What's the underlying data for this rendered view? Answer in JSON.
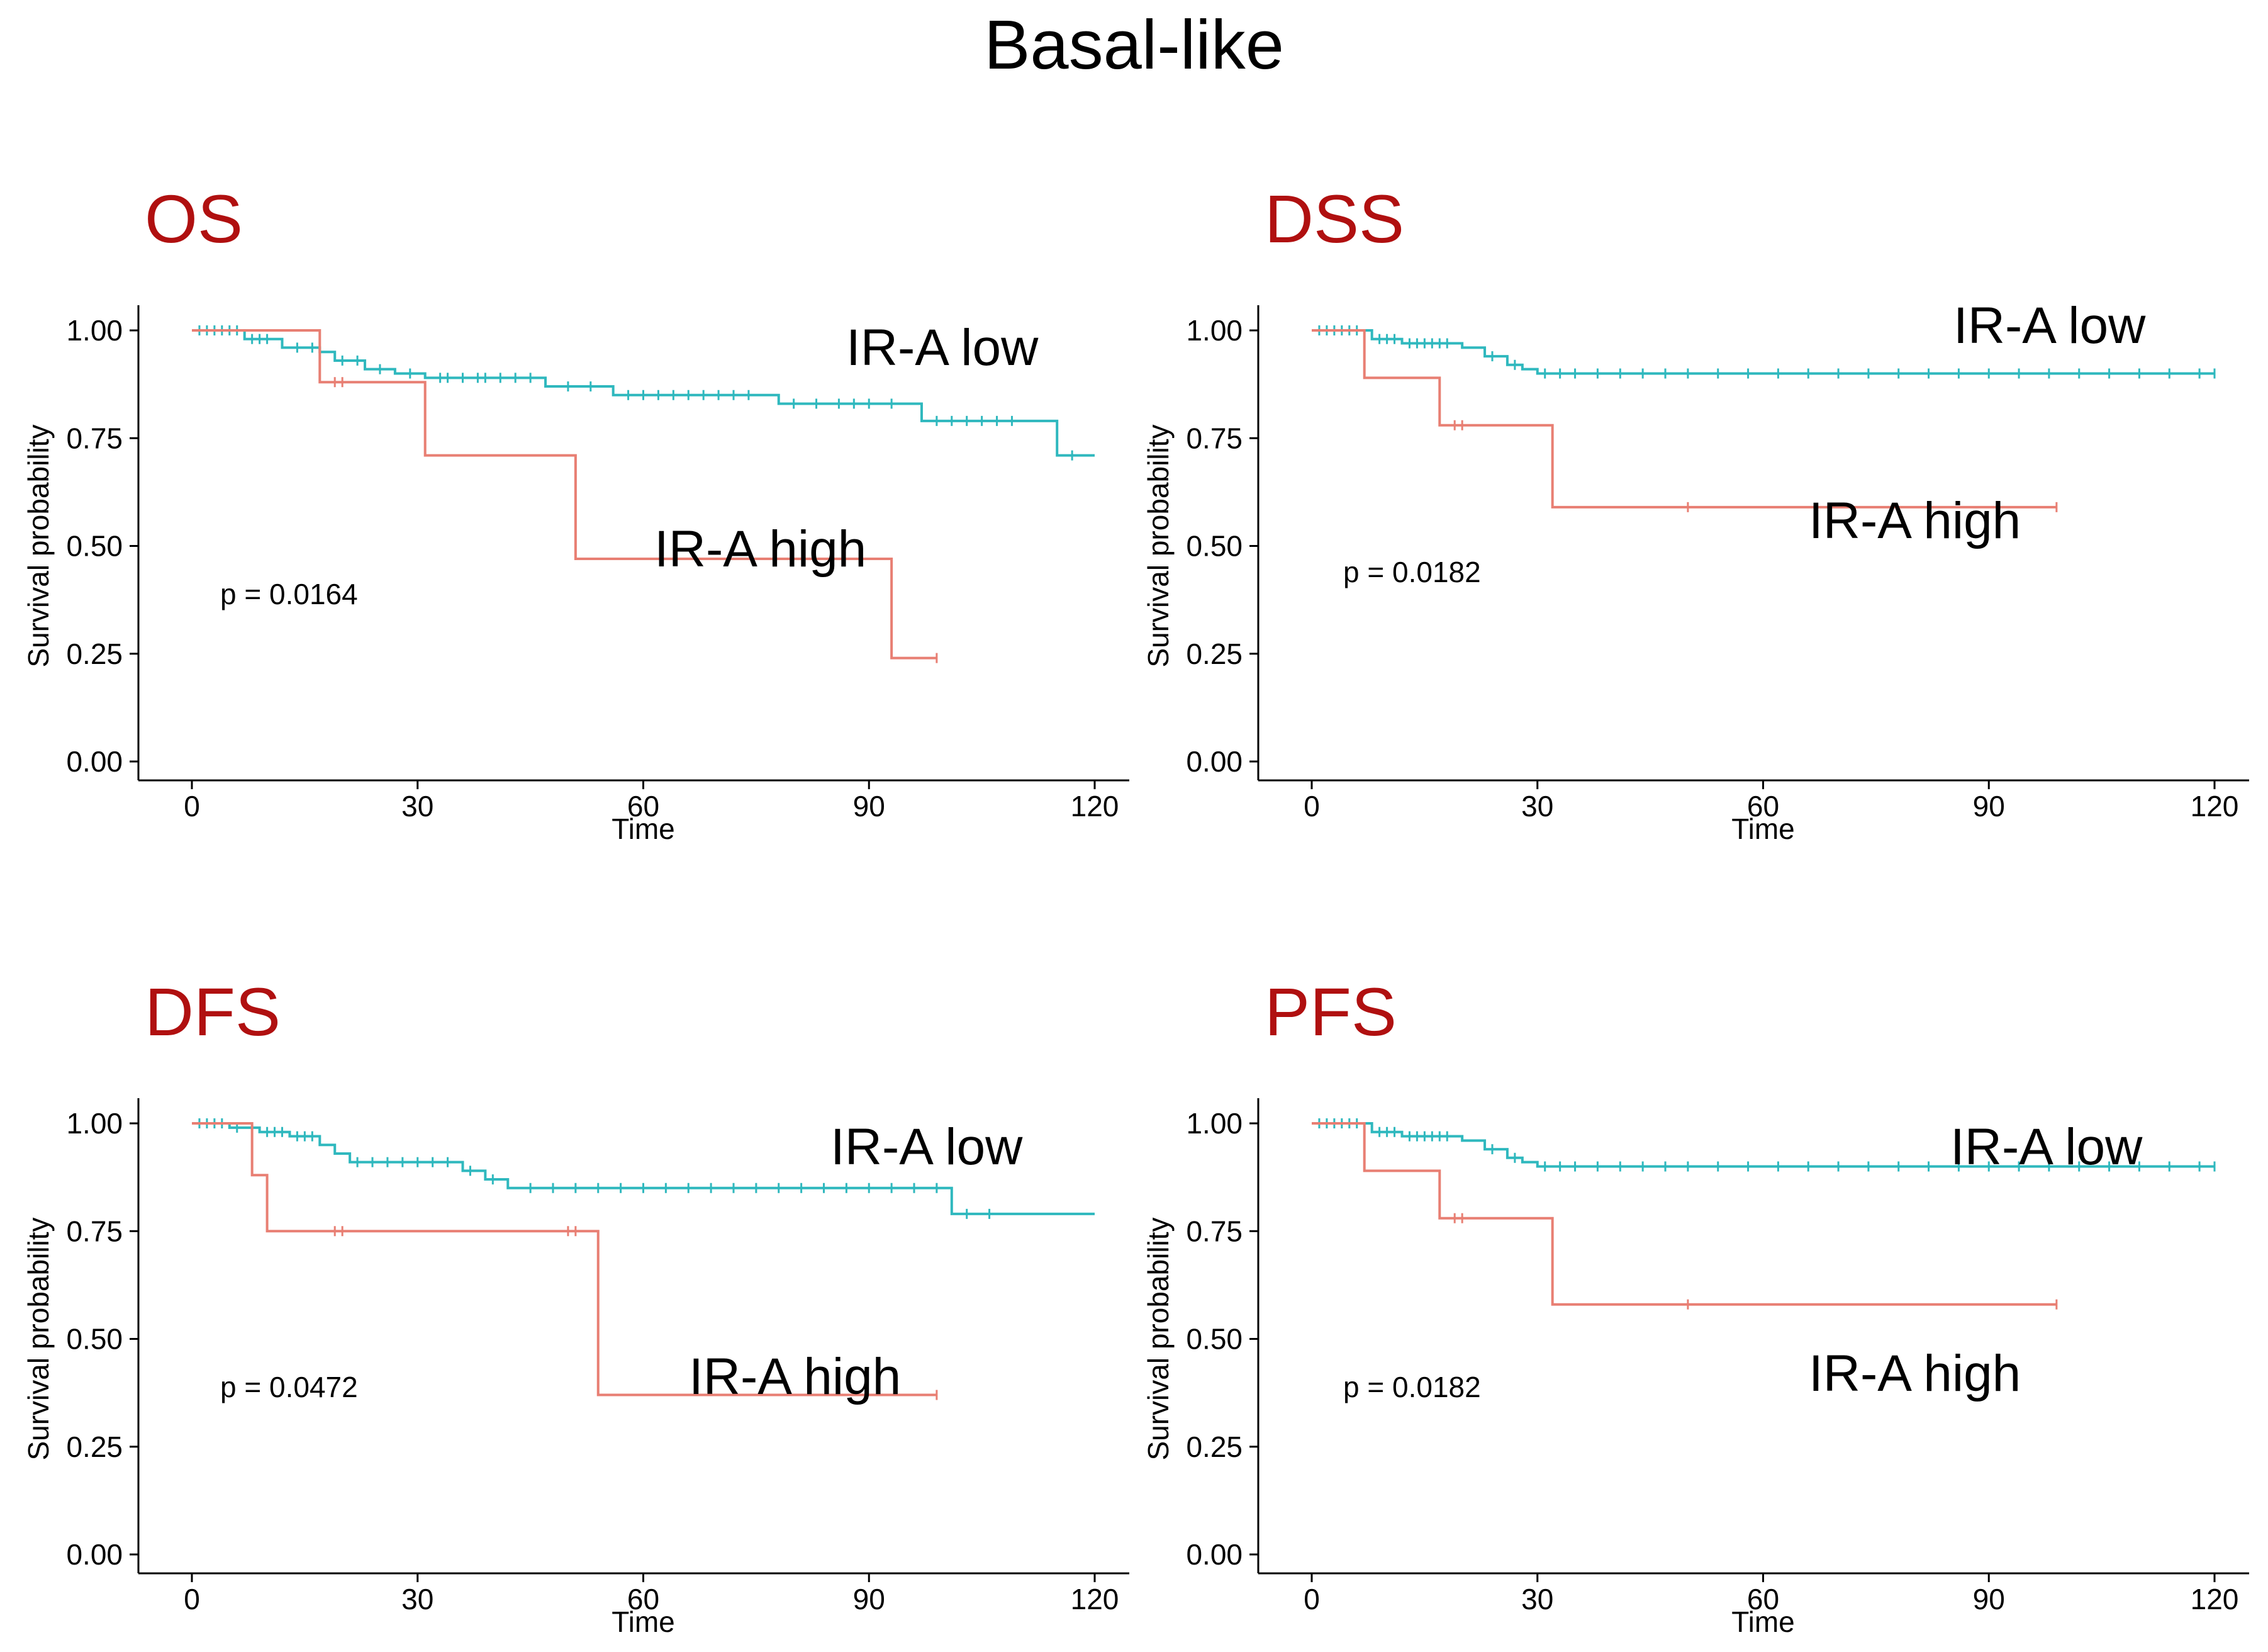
{
  "title": "Basal-like",
  "colors": {
    "low": "#2fb8be",
    "high": "#e87f73",
    "title": "#b01010",
    "axis": "#000000"
  },
  "chart_data": [
    {
      "type": "line",
      "id": "os",
      "title": "OS",
      "xlabel": "Time",
      "ylabel": "Survival probability",
      "xlim": [
        0,
        120
      ],
      "ylim": [
        0,
        1
      ],
      "xticks": [
        "0",
        "30",
        "60",
        "90",
        "120"
      ],
      "yticks": [
        "0.00",
        "0.25",
        "0.50",
        "0.75",
        "1.00"
      ],
      "pvalue": "p = 0.0164",
      "series": [
        {
          "name": "IR-A low",
          "label": "IR-A low",
          "x": [
            0,
            7,
            12,
            17,
            19,
            23,
            27,
            31,
            47,
            56,
            78,
            97,
            115,
            120
          ],
          "y": [
            1.0,
            0.98,
            0.96,
            0.95,
            0.93,
            0.91,
            0.9,
            0.89,
            0.87,
            0.85,
            0.83,
            0.79,
            0.71,
            0.71
          ],
          "censor_x": [
            1,
            2,
            3,
            4,
            5,
            6,
            8,
            9,
            10,
            14,
            16,
            20,
            22,
            25,
            29,
            33,
            34,
            36,
            38,
            39,
            41,
            43,
            45,
            50,
            53,
            58,
            60,
            62,
            64,
            66,
            68,
            70,
            72,
            74,
            80,
            83,
            86,
            88,
            90,
            93,
            99,
            101,
            103,
            105,
            107,
            109,
            117
          ]
        },
        {
          "name": "IR-A high",
          "label": "IR-A high",
          "x": [
            0,
            17,
            31,
            51,
            93,
            99
          ],
          "y": [
            1.0,
            0.88,
            0.71,
            0.47,
            0.24,
            0.24
          ],
          "censor_x": [
            19,
            20,
            99
          ]
        }
      ]
    },
    {
      "type": "line",
      "id": "dss",
      "title": "DSS",
      "xlabel": "Time",
      "ylabel": "Survival probability",
      "xlim": [
        0,
        120
      ],
      "ylim": [
        0,
        1
      ],
      "xticks": [
        "0",
        "30",
        "60",
        "90",
        "120"
      ],
      "yticks": [
        "0.00",
        "0.25",
        "0.50",
        "0.75",
        "1.00"
      ],
      "pvalue": "p = 0.0182",
      "series": [
        {
          "name": "IR-A low",
          "label": "IR-A low",
          "x": [
            0,
            8,
            12,
            20,
            23,
            26,
            28,
            30,
            120
          ],
          "y": [
            1.0,
            0.98,
            0.97,
            0.96,
            0.94,
            0.92,
            0.91,
            0.9,
            0.9
          ],
          "censor_x": [
            1,
            2,
            3,
            4,
            5,
            6,
            9,
            10,
            11,
            13,
            14,
            15,
            16,
            17,
            18,
            24,
            27,
            31,
            33,
            35,
            38,
            41,
            44,
            47,
            50,
            54,
            58,
            62,
            66,
            70,
            74,
            78,
            82,
            86,
            90,
            94,
            98,
            102,
            106,
            110,
            114,
            118,
            120
          ]
        },
        {
          "name": "IR-A high",
          "label": "IR-A high",
          "x": [
            0,
            7,
            17,
            32,
            99
          ],
          "y": [
            1.0,
            0.89,
            0.78,
            0.59,
            0.59
          ],
          "censor_x": [
            19,
            20,
            50,
            99
          ]
        }
      ]
    },
    {
      "type": "line",
      "id": "dfs",
      "title": "DFS",
      "xlabel": "Time",
      "ylabel": "Survival probability",
      "xlim": [
        0,
        120
      ],
      "ylim": [
        0,
        1
      ],
      "xticks": [
        "0",
        "30",
        "60",
        "90",
        "120"
      ],
      "yticks": [
        "0.00",
        "0.25",
        "0.50",
        "0.75",
        "1.00"
      ],
      "pvalue": "p = 0.0472",
      "series": [
        {
          "name": "IR-A low",
          "label": "IR-A low",
          "x": [
            0,
            5,
            9,
            13,
            17,
            19,
            21,
            36,
            39,
            42,
            101,
            120
          ],
          "y": [
            1.0,
            0.99,
            0.98,
            0.97,
            0.95,
            0.93,
            0.91,
            0.89,
            0.87,
            0.85,
            0.79,
            0.79
          ],
          "censor_x": [
            1,
            2,
            3,
            4,
            6,
            8,
            10,
            11,
            12,
            14,
            15,
            16,
            22,
            24,
            26,
            28,
            30,
            32,
            34,
            37,
            40,
            45,
            48,
            51,
            54,
            57,
            60,
            63,
            66,
            69,
            72,
            75,
            78,
            81,
            84,
            87,
            90,
            93,
            96,
            99,
            103,
            106
          ]
        },
        {
          "name": "IR-A high",
          "label": "IR-A high",
          "x": [
            0,
            8,
            10,
            54,
            99
          ],
          "y": [
            1.0,
            0.88,
            0.75,
            0.37,
            0.37
          ],
          "censor_x": [
            19,
            20,
            50,
            51,
            99
          ]
        }
      ]
    },
    {
      "type": "line",
      "id": "pfs",
      "title": "PFS",
      "xlabel": "Time",
      "ylabel": "Survival probability",
      "xlim": [
        0,
        120
      ],
      "ylim": [
        0,
        1
      ],
      "xticks": [
        "0",
        "30",
        "60",
        "90",
        "120"
      ],
      "yticks": [
        "0.00",
        "0.25",
        "0.50",
        "0.75",
        "1.00"
      ],
      "pvalue": "p = 0.0182",
      "series": [
        {
          "name": "IR-A low",
          "label": "IR-A low",
          "x": [
            0,
            8,
            12,
            20,
            23,
            26,
            28,
            30,
            120
          ],
          "y": [
            1.0,
            0.98,
            0.97,
            0.96,
            0.94,
            0.92,
            0.91,
            0.9,
            0.9
          ],
          "censor_x": [
            1,
            2,
            3,
            4,
            5,
            6,
            9,
            10,
            11,
            13,
            14,
            15,
            16,
            17,
            18,
            24,
            27,
            31,
            33,
            35,
            38,
            41,
            44,
            47,
            50,
            54,
            58,
            62,
            66,
            70,
            74,
            78,
            82,
            86,
            90,
            94,
            98,
            102,
            106,
            110,
            114,
            118,
            120
          ]
        },
        {
          "name": "IR-A high",
          "label": "IR-A high",
          "x": [
            0,
            7,
            17,
            32,
            99
          ],
          "y": [
            1.0,
            0.89,
            0.78,
            0.58,
            0.58
          ],
          "censor_x": [
            19,
            20,
            50,
            99
          ]
        }
      ]
    }
  ]
}
